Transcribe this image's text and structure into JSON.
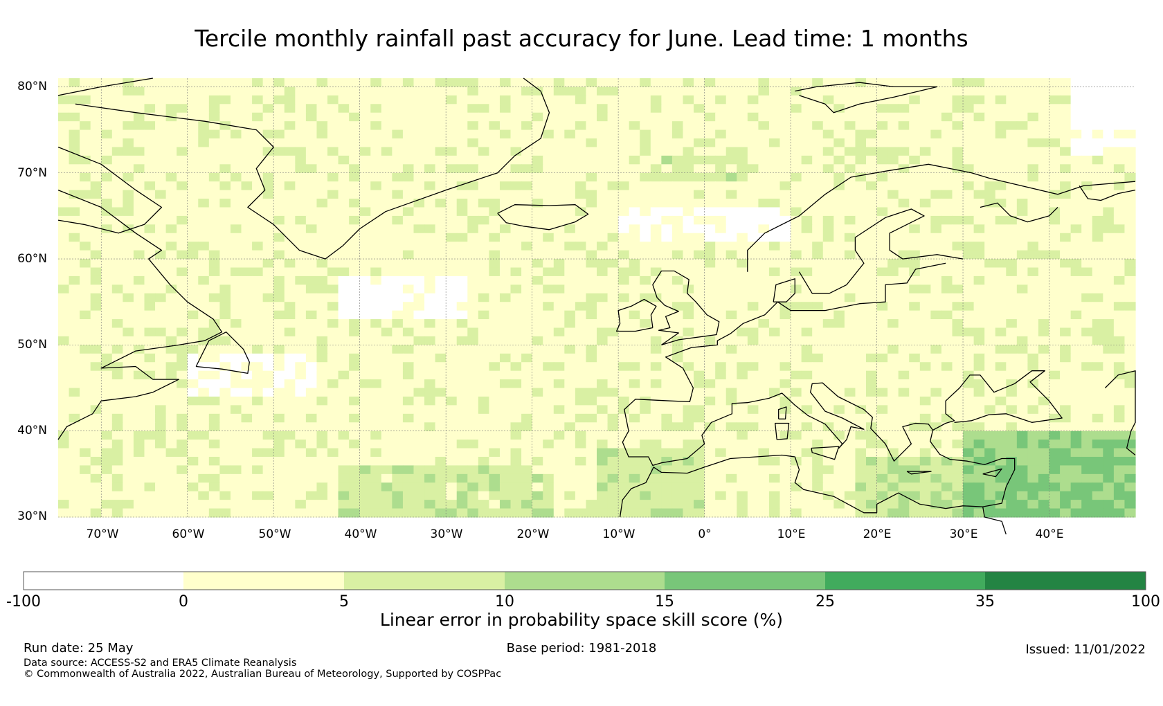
{
  "title": "Tercile monthly rainfall past accuracy for June. Lead time: 1 months",
  "map": {
    "lat_labels": [
      "80°N",
      "70°N",
      "60°N",
      "50°N",
      "40°N",
      "30°N"
    ],
    "lon_labels": [
      "70°W",
      "60°W",
      "50°W",
      "40°W",
      "30°W",
      "20°W",
      "10°W",
      "0°",
      "10°E",
      "20°E",
      "30°E",
      "40°E"
    ],
    "lat_values": [
      80,
      70,
      60,
      50,
      40,
      30
    ],
    "lon_values": [
      -70,
      -60,
      -50,
      -40,
      -30,
      -20,
      -10,
      0,
      10,
      20,
      30,
      40
    ],
    "extent": {
      "lon_min": -75,
      "lon_max": 50,
      "lat_min": 30,
      "lat_max": 81
    }
  },
  "colorbar": {
    "title": "Linear error in probability space skill score (%)",
    "ticks": [
      "-100",
      "0",
      "5",
      "10",
      "15",
      "25",
      "35",
      "100"
    ],
    "colors": [
      "#ffffff",
      "#ffffcc",
      "#d9f0a3",
      "#addd8e",
      "#78c679",
      "#41ab5d",
      "#238443"
    ]
  },
  "footer": {
    "run_date": "Run date: 25 May",
    "base_period": "Base period: 1981-2018",
    "issued": "Issued: 11/01/2022",
    "data_source": "Data source: ACCESS-S2 and ERA5 Climate Reanalysis",
    "copyright": "© Commonwealth of Australia 2022, Australian Bureau of Meteorology, Supported by COSPPac"
  }
}
